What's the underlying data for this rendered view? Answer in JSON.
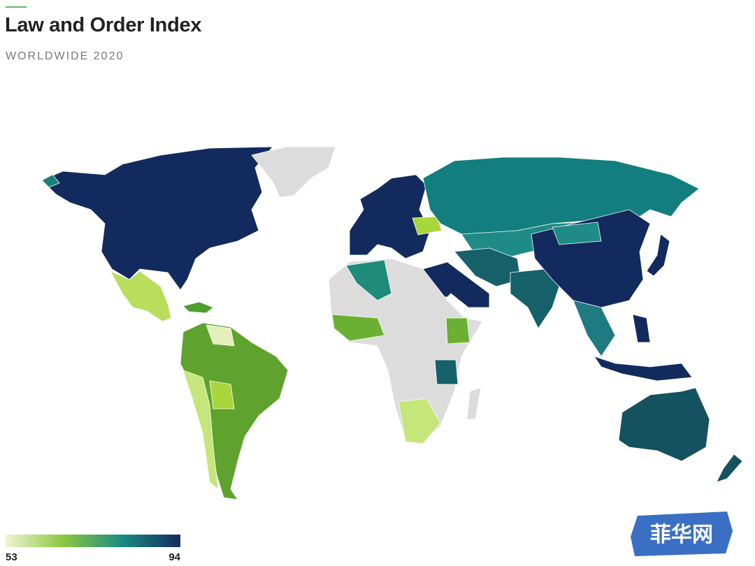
{
  "header": {
    "title": "Law and Order Index",
    "subtitle": "WORLDWIDE 2020"
  },
  "legend": {
    "min": 53,
    "max": 94,
    "colors": [
      "#eef5d2",
      "#8cc63f",
      "#1a8c80",
      "#132a5e"
    ]
  },
  "watermark": "菲华网"
}
